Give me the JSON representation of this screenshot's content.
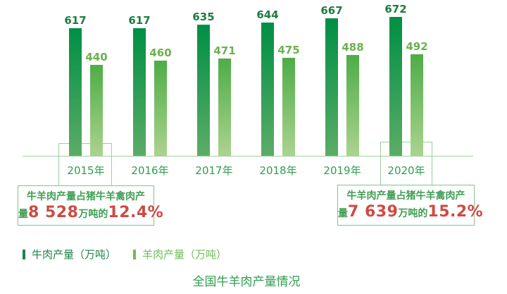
{
  "title": "全国牛羊肉产量情况",
  "legend": {
    "beef_label": "牛肉产量（万吨）",
    "mutton_label": "羊肉产量（万吨）"
  },
  "chart_data": {
    "type": "bar",
    "categories": [
      "2015年",
      "2016年",
      "2017年",
      "2018年",
      "2019年",
      "2020年"
    ],
    "series": [
      {
        "name": "牛肉产量（万吨）",
        "values": [
          617,
          617,
          635,
          644,
          667,
          672
        ]
      },
      {
        "name": "羊肉产量（万吨）",
        "values": [
          440,
          460,
          471,
          475,
          488,
          492
        ]
      }
    ],
    "title": "全国牛羊肉产量情况",
    "xlabel": "",
    "ylabel": "",
    "ylim": [
      0,
      700
    ],
    "grid": false,
    "value_labels_shown": true,
    "legend_position": "bottom-left",
    "highlighted_categories": [
      "2015年",
      "2020年"
    ]
  },
  "callouts": {
    "left": {
      "line1": "牛羊肉产量占猪牛羊禽肉产",
      "prefix": "量",
      "number": "8 528",
      "middle": "万吨的",
      "percent": "12.4%"
    },
    "right": {
      "line1": "牛羊肉产量占猪牛羊禽肉产",
      "prefix": "量",
      "number": "7 639",
      "middle": "万吨的",
      "percent": "15.2%"
    }
  },
  "colors": {
    "beef_bar_top": "#008f45",
    "beef_bar_bottom": "#5cac66",
    "mutton_bar_top": "#4ead46",
    "mutton_bar_bottom": "#abd38f",
    "beef_value_label": "#1d7c40",
    "mutton_value_label": "#6ab14f",
    "axis_line": "#9ccf9f",
    "bracket_border": "#9ccf9f",
    "callout_border": "#84c28e",
    "callout_green_text": "#3f9e53",
    "callout_red_text": "#d04a43",
    "year_label": "#2f9e50",
    "legend_beef": "#1e8248",
    "legend_mutton": "#6cbd55",
    "title_text": "#2f9e50"
  }
}
